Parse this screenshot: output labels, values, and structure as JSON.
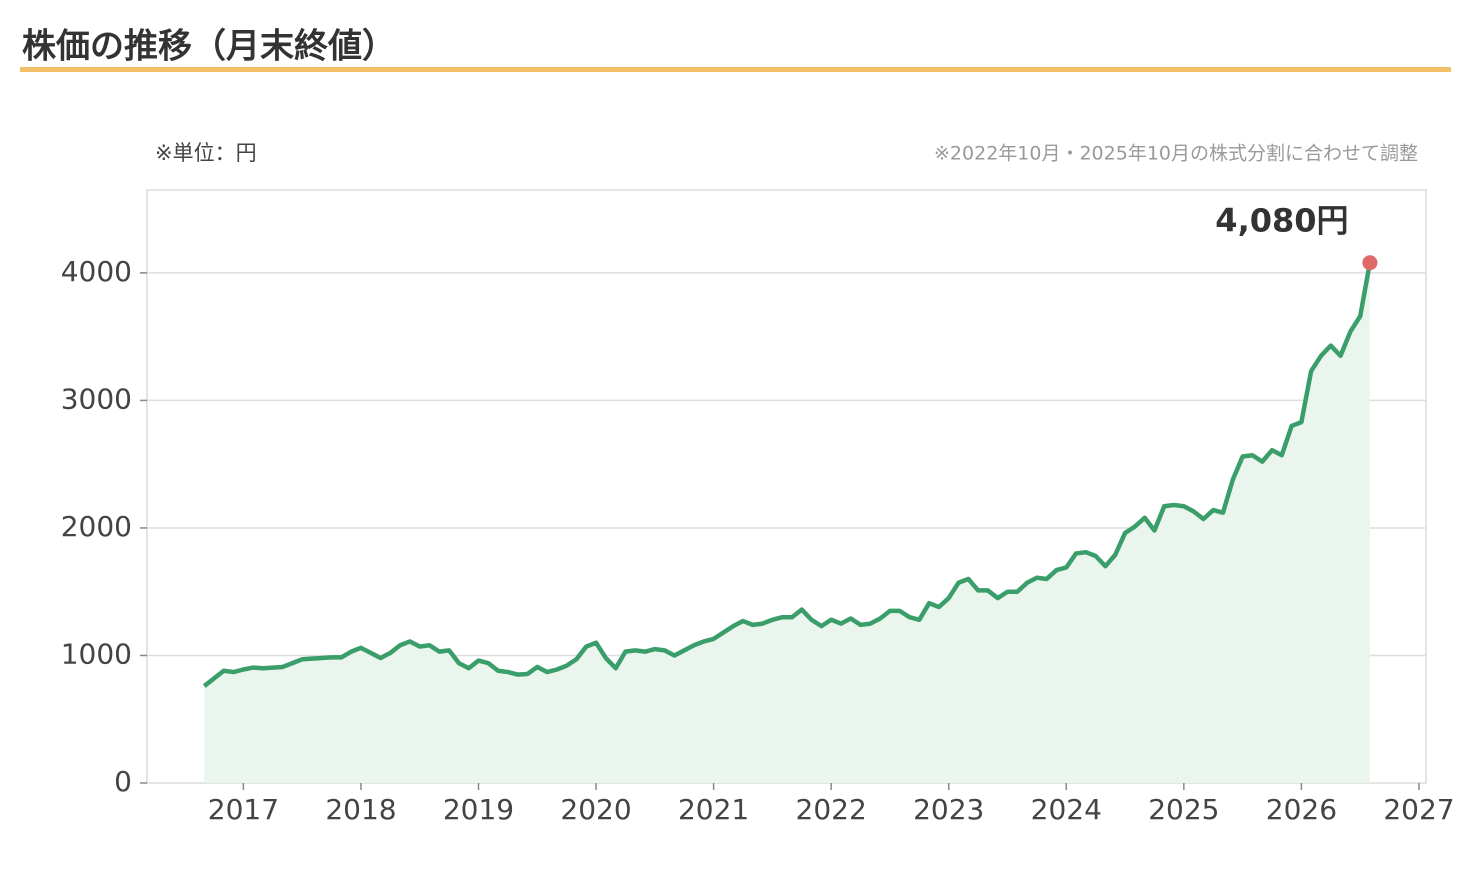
{
  "chart_data": {
    "type": "line",
    "title": "株価の推移（月末終値）",
    "unit_note": "※単位：円",
    "adjust_note": "※2022年10月・2025年10月の株式分割に合わせて調整",
    "x": [
      2016.667,
      2016.75,
      2016.833,
      2016.917,
      2017,
      2017.083,
      2017.167,
      2017.25,
      2017.333,
      2017.417,
      2017.5,
      2017.583,
      2017.667,
      2017.75,
      2017.833,
      2017.917,
      2018,
      2018.083,
      2018.167,
      2018.25,
      2018.333,
      2018.417,
      2018.5,
      2018.583,
      2018.667,
      2018.75,
      2018.833,
      2018.917,
      2019,
      2019.083,
      2019.167,
      2019.25,
      2019.333,
      2019.417,
      2019.5,
      2019.583,
      2019.667,
      2019.75,
      2019.833,
      2019.917,
      2020,
      2020.083,
      2020.167,
      2020.25,
      2020.333,
      2020.417,
      2020.5,
      2020.583,
      2020.667,
      2020.75,
      2020.833,
      2020.917,
      2021,
      2021.083,
      2021.167,
      2021.25,
      2021.333,
      2021.417,
      2021.5,
      2021.583,
      2021.667,
      2021.75,
      2021.833,
      2021.917,
      2022,
      2022.083,
      2022.167,
      2022.25,
      2022.333,
      2022.417,
      2022.5,
      2022.583,
      2022.667,
      2022.75,
      2022.833,
      2022.917,
      2023,
      2023.083,
      2023.167,
      2023.25,
      2023.333,
      2023.417,
      2023.5,
      2023.583,
      2023.667,
      2023.75,
      2023.833,
      2023.917,
      2024,
      2024.083,
      2024.167,
      2024.25,
      2024.333,
      2024.417,
      2024.5,
      2024.583,
      2024.667,
      2024.75,
      2024.833,
      2024.917,
      2025,
      2025.083,
      2025.167,
      2025.25,
      2025.333,
      2025.417,
      2025.5,
      2025.583,
      2025.667,
      2025.75,
      2025.833,
      2025.917,
      2026,
      2026.083,
      2026.167,
      2026.25,
      2026.333,
      2026.417,
      2026.5,
      2026.583
    ],
    "values": [
      760,
      820,
      880,
      870,
      890,
      905,
      900,
      905,
      910,
      940,
      970,
      975,
      980,
      985,
      985,
      1030,
      1060,
      1020,
      980,
      1020,
      1080,
      1110,
      1070,
      1080,
      1030,
      1040,
      940,
      900,
      960,
      940,
      880,
      870,
      850,
      855,
      910,
      870,
      890,
      920,
      970,
      1070,
      1100,
      980,
      900,
      1030,
      1040,
      1030,
      1050,
      1040,
      1000,
      1040,
      1080,
      1110,
      1130,
      1180,
      1230,
      1270,
      1240,
      1250,
      1280,
      1300,
      1300,
      1360,
      1280,
      1230,
      1280,
      1250,
      1290,
      1240,
      1250,
      1290,
      1350,
      1350,
      1300,
      1280,
      1410,
      1380,
      1450,
      1570,
      1600,
      1510,
      1510,
      1450,
      1500,
      1500,
      1570,
      1610,
      1600,
      1670,
      1690,
      1800,
      1810,
      1780,
      1700,
      1790,
      1960,
      2010,
      2080,
      1980,
      2170,
      2180,
      2170,
      2130,
      2070,
      2140,
      2120,
      2380,
      2560,
      2570,
      2520,
      2610,
      2570,
      2800,
      2830,
      3230,
      3350,
      3430,
      3350,
      3540,
      3660,
      4080
    ],
    "value_labels": [
      null,
      null,
      null,
      null,
      null,
      null,
      null,
      null,
      null,
      null,
      null,
      null,
      null,
      null,
      null,
      null,
      null,
      null,
      null,
      null,
      null,
      null,
      null,
      null,
      null,
      null,
      null,
      null,
      null,
      null,
      null,
      null,
      null,
      null,
      null,
      null,
      null,
      null,
      null,
      null,
      null,
      null,
      null,
      null,
      null,
      null,
      null,
      null,
      null,
      null,
      null,
      null,
      null,
      null,
      null,
      null,
      null,
      null,
      null,
      null,
      null,
      null,
      null,
      null,
      null,
      null,
      null,
      null,
      null,
      null,
      null,
      null,
      null,
      null,
      null,
      null,
      null,
      null,
      null,
      null,
      null,
      null,
      null,
      null,
      null,
      null,
      null,
      null,
      null,
      null,
      null,
      null,
      null,
      null,
      null,
      null,
      null,
      null,
      null,
      null,
      null,
      null,
      null,
      null,
      null,
      null,
      null,
      null,
      null,
      null,
      null,
      null,
      null,
      null,
      null,
      null,
      null,
      null,
      null,
      "4,080円"
    ],
    "color": "#3a9e6a",
    "area_color": "#eaf5ee",
    "last_point_color": "#e06868",
    "xlim": [
      2016.18,
      2027.06
    ],
    "xticks": [
      2017,
      2018,
      2019,
      2020,
      2021,
      2022,
      2023,
      2024,
      2025,
      2026,
      2027
    ],
    "ylim": [
      0,
      4650
    ],
    "yticks": [
      0,
      1000,
      2000,
      3000,
      4000
    ],
    "grid": true
  }
}
